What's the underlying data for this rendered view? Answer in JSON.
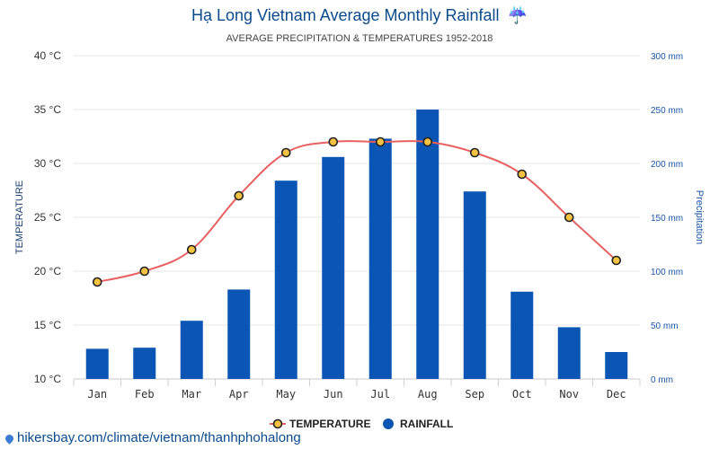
{
  "chart_data": {
    "type": "bar+line",
    "title": "Hạ Long Vietnam Average Monthly Rainfall",
    "subtitle": "AVERAGE PRECIPITATION & TEMPERATURES 1952-2018",
    "categories": [
      "Jan",
      "Feb",
      "Mar",
      "Apr",
      "May",
      "Jun",
      "Jul",
      "Aug",
      "Sep",
      "Oct",
      "Nov",
      "Dec"
    ],
    "series": [
      {
        "name": "TEMPERATURE",
        "type": "line",
        "axis": "left",
        "color": "#e86060",
        "marker_fill": "#f5c242",
        "values": [
          19,
          20,
          22,
          27,
          31,
          32,
          32,
          32,
          31,
          29,
          25,
          21
        ]
      },
      {
        "name": "RAINFALL",
        "type": "bar",
        "axis": "right",
        "color": "#0b56b4",
        "values": [
          28,
          29,
          54,
          83,
          184,
          206,
          223,
          250,
          174,
          81,
          48,
          25
        ]
      }
    ],
    "left_axis": {
      "label": "TEMPERATURE",
      "range": [
        10,
        40
      ],
      "ticks": [
        10,
        15,
        20,
        25,
        30,
        35,
        40
      ],
      "tick_labels": [
        "10 °C",
        "15 °C",
        "20 °C",
        "25 °C",
        "30 °C",
        "35 °C",
        "40 °C"
      ]
    },
    "right_axis": {
      "label": "Precipitation",
      "range": [
        0,
        300
      ],
      "ticks": [
        0,
        50,
        100,
        150,
        200,
        250,
        300
      ],
      "tick_labels": [
        "0 mm",
        "50 mm",
        "100 mm",
        "150 mm",
        "200 mm",
        "250 mm",
        "300 mm"
      ]
    },
    "grid": true,
    "legend_position": "bottom-center"
  },
  "icons": {
    "title_icon": "umbrella-rain-icon",
    "title_icon_glyph": "☔"
  },
  "footer": {
    "source_text": "hikersbay.com/climate/vietnam/thanhphohalong"
  }
}
